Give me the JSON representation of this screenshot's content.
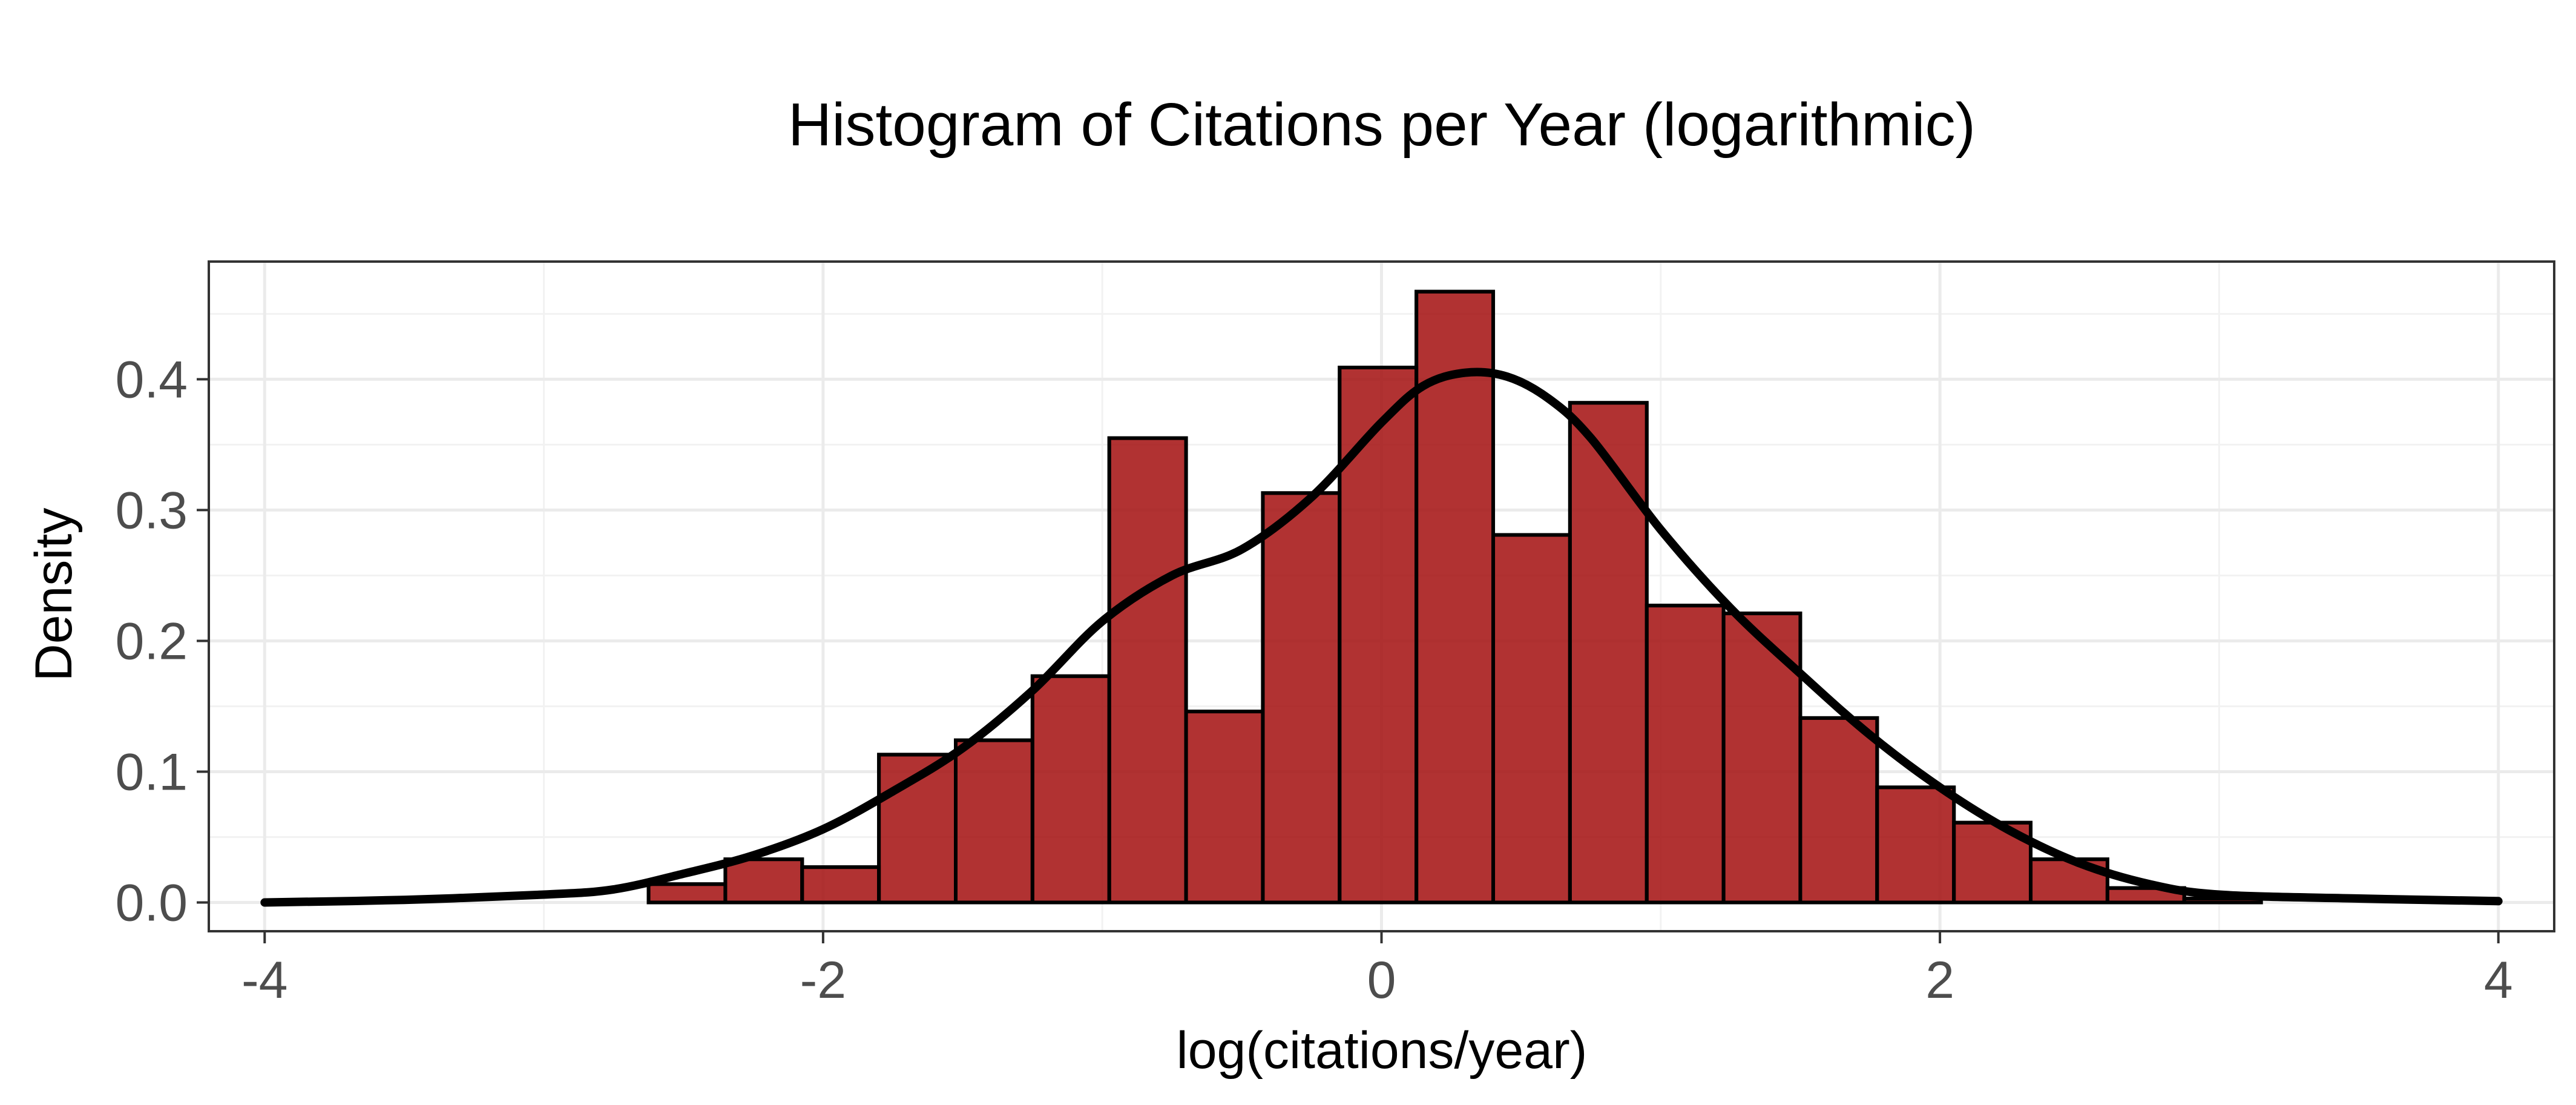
{
  "chart_data": {
    "type": "bar",
    "title": "Histogram of Citations per Year (logarithmic)",
    "xlabel": "log(citations/year)",
    "ylabel": "Density",
    "xlim": [
      -4.2,
      4.2
    ],
    "ylim": [
      -0.022,
      0.49
    ],
    "x_ticks": [
      -4,
      -2,
      0,
      2,
      4
    ],
    "x_tick_labels": [
      "-4",
      "-2",
      "0",
      "2",
      "4"
    ],
    "y_ticks": [
      0.0,
      0.1,
      0.2,
      0.3,
      0.4
    ],
    "y_tick_labels": [
      "0.0",
      "0.1",
      "0.2",
      "0.3",
      "0.4"
    ],
    "grid": true,
    "legend": "none",
    "bin_width": 0.275,
    "series": [
      {
        "type": "histogram",
        "color": "#8b0000",
        "opacity": 0.7,
        "bins_start": [
          -2.625,
          -2.35,
          -2.075,
          -1.8,
          -1.525,
          -1.25,
          -0.975,
          -0.7,
          -0.425,
          -0.15,
          0.125,
          0.4,
          0.675,
          0.95,
          1.225,
          1.5,
          1.775,
          2.05,
          2.325,
          2.6,
          2.875
        ],
        "values": [
          0.014,
          0.033,
          0.027,
          0.113,
          0.124,
          0.173,
          0.355,
          0.146,
          0.313,
          0.409,
          0.467,
          0.281,
          0.382,
          0.227,
          0.221,
          0.141,
          0.088,
          0.061,
          0.033,
          0.011,
          0.003
        ]
      },
      {
        "type": "histogram",
        "color": "#b22222",
        "opacity": 0.6,
        "bins_start": [
          -2.625,
          -2.35,
          -2.075,
          -1.8,
          -1.525,
          -1.25,
          -0.975,
          -0.7,
          -0.425,
          -0.15,
          0.125,
          0.4,
          0.675,
          0.95,
          1.225,
          1.5,
          1.775,
          2.05,
          2.325,
          2.6,
          2.875
        ],
        "values": [
          0.014,
          0.033,
          0.027,
          0.113,
          0.124,
          0.173,
          0.355,
          0.146,
          0.313,
          0.409,
          0.467,
          0.281,
          0.382,
          0.227,
          0.221,
          0.141,
          0.088,
          0.061,
          0.033,
          0.011,
          0.003
        ]
      },
      {
        "type": "density",
        "color": "#000000",
        "x": [
          -4.0,
          -3.5,
          -3.0,
          -2.75,
          -2.5,
          -2.25,
          -2.0,
          -1.75,
          -1.5,
          -1.25,
          -1.0,
          -0.75,
          -0.5,
          -0.25,
          0.0,
          0.15,
          0.3,
          0.45,
          0.6,
          0.75,
          1.0,
          1.25,
          1.5,
          1.75,
          2.0,
          2.25,
          2.5,
          2.75,
          3.0,
          3.5,
          4.0
        ],
        "y": [
          0.0,
          0.002,
          0.006,
          0.01,
          0.022,
          0.036,
          0.056,
          0.085,
          0.118,
          0.162,
          0.215,
          0.25,
          0.27,
          0.31,
          0.367,
          0.395,
          0.405,
          0.402,
          0.385,
          0.355,
          0.285,
          0.225,
          0.175,
          0.128,
          0.088,
          0.055,
          0.03,
          0.014,
          0.006,
          0.003,
          0.001
        ]
      }
    ]
  }
}
